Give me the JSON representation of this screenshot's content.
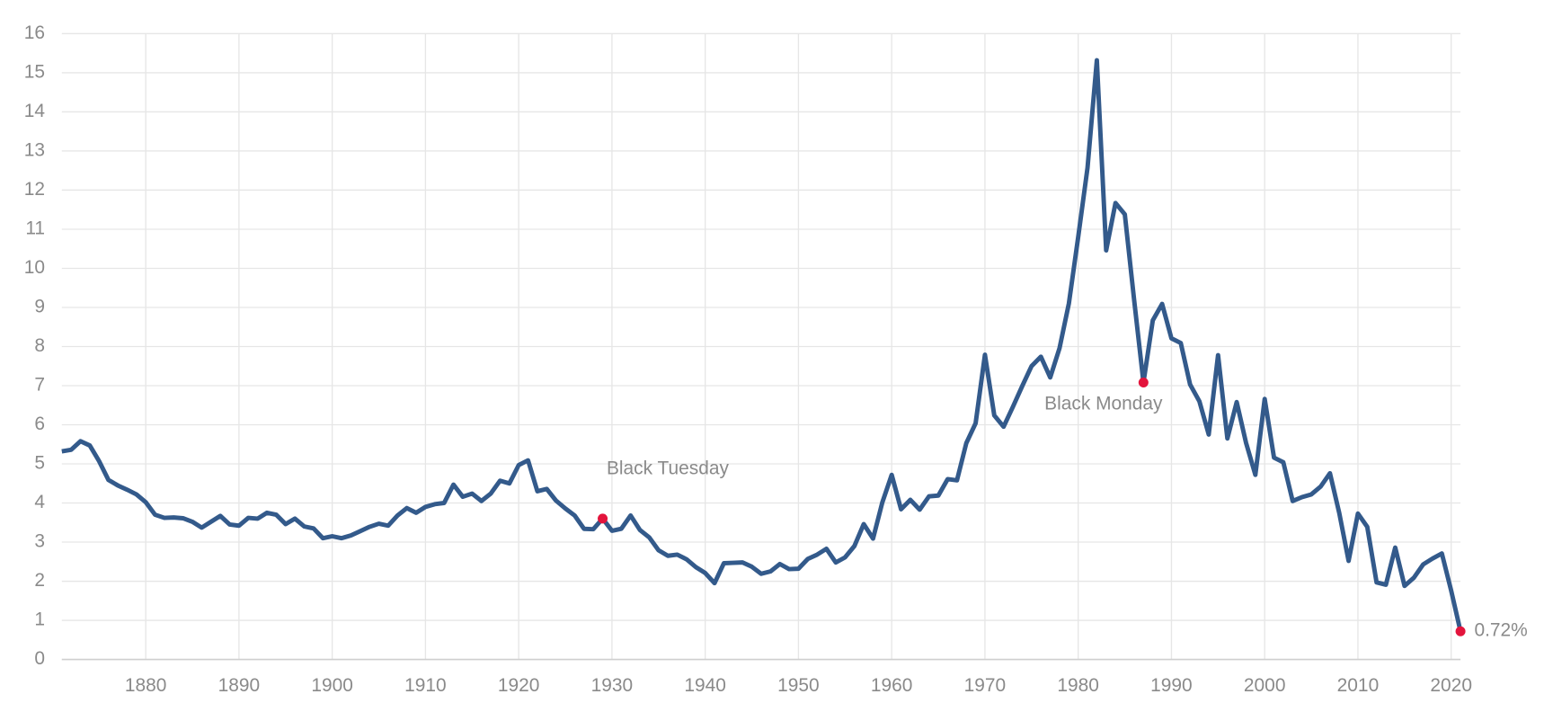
{
  "chart_data": {
    "type": "line",
    "x": [
      1871,
      1872,
      1873,
      1874,
      1875,
      1876,
      1877,
      1878,
      1879,
      1880,
      1881,
      1882,
      1883,
      1884,
      1885,
      1886,
      1887,
      1888,
      1889,
      1890,
      1891,
      1892,
      1893,
      1894,
      1895,
      1896,
      1897,
      1898,
      1899,
      1900,
      1901,
      1902,
      1903,
      1904,
      1905,
      1906,
      1907,
      1908,
      1909,
      1910,
      1911,
      1912,
      1913,
      1914,
      1915,
      1916,
      1917,
      1918,
      1919,
      1920,
      1921,
      1922,
      1923,
      1924,
      1925,
      1926,
      1927,
      1928,
      1929,
      1930,
      1931,
      1932,
      1933,
      1934,
      1935,
      1936,
      1937,
      1938,
      1939,
      1940,
      1941,
      1942,
      1943,
      1944,
      1945,
      1946,
      1947,
      1948,
      1949,
      1950,
      1951,
      1952,
      1953,
      1954,
      1955,
      1956,
      1957,
      1958,
      1959,
      1960,
      1961,
      1962,
      1963,
      1964,
      1965,
      1966,
      1967,
      1968,
      1969,
      1970,
      1971,
      1972,
      1973,
      1974,
      1975,
      1976,
      1977,
      1978,
      1979,
      1980,
      1981,
      1982,
      1983,
      1984,
      1985,
      1986,
      1987,
      1988,
      1989,
      1990,
      1991,
      1992,
      1993,
      1994,
      1995,
      1996,
      1997,
      1998,
      1999,
      2000,
      2001,
      2002,
      2003,
      2004,
      2005,
      2006,
      2007,
      2008,
      2009,
      2010,
      2011,
      2012,
      2013,
      2014,
      2015,
      2016,
      2017,
      2018,
      2019,
      2020,
      2021
    ],
    "series": [
      {
        "color": "#335a8b",
        "values": [
          5.32,
          5.36,
          5.58,
          5.47,
          5.07,
          4.59,
          4.45,
          4.34,
          4.22,
          4.02,
          3.7,
          3.62,
          3.63,
          3.61,
          3.52,
          3.37,
          3.52,
          3.67,
          3.45,
          3.42,
          3.62,
          3.6,
          3.75,
          3.7,
          3.46,
          3.6,
          3.4,
          3.35,
          3.1,
          3.15,
          3.1,
          3.17,
          3.28,
          3.39,
          3.47,
          3.42,
          3.68,
          3.87,
          3.75,
          3.9,
          3.97,
          4.0,
          4.47,
          4.16,
          4.24,
          4.05,
          4.24,
          4.57,
          4.5,
          4.97,
          5.09,
          4.3,
          4.36,
          4.06,
          3.86,
          3.68,
          3.34,
          3.33,
          3.6,
          3.29,
          3.34,
          3.68,
          3.31,
          3.12,
          2.79,
          2.65,
          2.68,
          2.56,
          2.36,
          2.21,
          1.95,
          2.46,
          2.47,
          2.48,
          2.37,
          2.19,
          2.25,
          2.44,
          2.31,
          2.32,
          2.57,
          2.68,
          2.83,
          2.48,
          2.61,
          2.9,
          3.46,
          3.09,
          4.02,
          4.72,
          3.84,
          4.08,
          3.83,
          4.17,
          4.19,
          4.61,
          4.58,
          5.53,
          6.04,
          7.79,
          6.24,
          5.95,
          6.46,
          6.99,
          7.5,
          7.74,
          7.21,
          7.96,
          9.1,
          10.8,
          12.57,
          15.32,
          10.46,
          11.67,
          11.38,
          9.19,
          7.08,
          8.67,
          9.09,
          8.21,
          8.09,
          7.03,
          6.6,
          5.75,
          7.78,
          5.65,
          6.58,
          5.54,
          4.72,
          6.66,
          5.16,
          5.04,
          4.05,
          4.15,
          4.22,
          4.42,
          4.76,
          3.74,
          2.52,
          3.73,
          3.39,
          1.97,
          1.91,
          2.86,
          1.88,
          2.09,
          2.43,
          2.58,
          2.71,
          1.76,
          0.72
        ],
        "value_labels": [
          null,
          null,
          null,
          null,
          null,
          null,
          null,
          null,
          null,
          null,
          null,
          null,
          null,
          null,
          null,
          null,
          null,
          null,
          null,
          null,
          null,
          null,
          null,
          null,
          null,
          null,
          null,
          null,
          null,
          null,
          null,
          null,
          null,
          null,
          null,
          null,
          null,
          null,
          null,
          null,
          null,
          null,
          null,
          null,
          null,
          null,
          null,
          null,
          null,
          null,
          null,
          null,
          null,
          null,
          null,
          null,
          null,
          null,
          null,
          null,
          null,
          null,
          null,
          null,
          null,
          null,
          null,
          null,
          null,
          null,
          null,
          null,
          null,
          null,
          null,
          null,
          null,
          null,
          null,
          null,
          null,
          null,
          null,
          null,
          null,
          null,
          null,
          null,
          null,
          null,
          null,
          null,
          null,
          null,
          null,
          null,
          null,
          null,
          null,
          null,
          null,
          null,
          null,
          null,
          null,
          null,
          null,
          null,
          null,
          null,
          null,
          null,
          null,
          null,
          null,
          null,
          null,
          null,
          null,
          null,
          null,
          null,
          null,
          null,
          null,
          null,
          null,
          null,
          null,
          null,
          null,
          null,
          null,
          null,
          null,
          null,
          null,
          null,
          null,
          null,
          null,
          null,
          null,
          null,
          null,
          null,
          null,
          null,
          null,
          null,
          "0.72%"
        ]
      }
    ],
    "annotations": [
      {
        "text": "Black Tuesday",
        "x": 1929
      },
      {
        "text": "Black Monday",
        "x": 1987
      }
    ],
    "highlight_color": "#e3143c",
    "xlim": [
      1871,
      2021
    ],
    "xticks": [
      1880,
      1890,
      1900,
      1910,
      1920,
      1930,
      1940,
      1950,
      1960,
      1970,
      1980,
      1990,
      2000,
      2010,
      2020
    ],
    "ylim": [
      0,
      16
    ],
    "yticks": [
      0,
      1,
      2,
      3,
      4,
      5,
      6,
      7,
      8,
      9,
      10,
      11,
      12,
      13,
      14,
      15,
      16
    ],
    "grid": true
  }
}
